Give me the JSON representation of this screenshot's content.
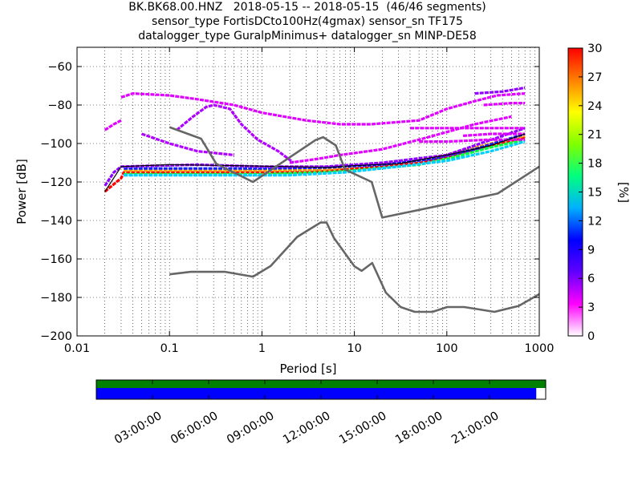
{
  "chart_data": [
    {
      "type": "heatmap",
      "title": [
        "BK.BK68.00.HNZ   2018-05-15 -- 2018-05-15  (46/46 segments)",
        "sensor_type FortisDCto100Hz(4gmax) sensor_sn TF175",
        "datalogger_type GuralpMinimus+ datalogger_sn MINP-DE58"
      ],
      "xlabel": "Period [s]",
      "ylabel": "Power [dB]",
      "xscale": "log",
      "xlim": [
        0.01,
        1000
      ],
      "ylim": [
        -200,
        -50
      ],
      "xtick_values": [
        0.01,
        0.1,
        1,
        10,
        100,
        1000
      ],
      "xtick_labels": [
        "0.01",
        "0.1",
        "1",
        "10",
        "100",
        "1000"
      ],
      "ytick_values": [
        -200,
        -180,
        -160,
        -140,
        -120,
        -100,
        -80,
        -60
      ],
      "ytick_labels": [
        "−200",
        "−180",
        "−160",
        "−140",
        "−120",
        "−100",
        "−80",
        "−60"
      ],
      "grid": "dotted",
      "colorbar": {
        "label": "[%]",
        "min": 0,
        "max": 30,
        "ticks": [
          0,
          3,
          6,
          9,
          12,
          15,
          18,
          21,
          24,
          27,
          30
        ],
        "colormap": [
          "#ffffff",
          "#ff00ff",
          "#6000ff",
          "#0000ff",
          "#00b0ff",
          "#00ff80",
          "#80ff00",
          "#ffff00",
          "#ff8000",
          "#ff0000"
        ]
      },
      "model_curves": [
        {
          "name": "NHNM",
          "color": "#666666",
          "points": [
            [
              0.1,
              -91.5
            ],
            [
              0.22,
              -97.5
            ],
            [
              0.32,
              -110.5
            ],
            [
              0.8,
              -120
            ],
            [
              3.8,
              -98.2
            ],
            [
              4.6,
              -96.7
            ],
            [
              6.3,
              -101
            ],
            [
              7.9,
              -113.5
            ],
            [
              15.4,
              -120
            ],
            [
              20,
              -138.5
            ],
            [
              354.8,
              -126
            ],
            [
              1000,
              -112
            ]
          ]
        },
        {
          "name": "NLNM",
          "color": "#666666",
          "points": [
            [
              0.1,
              -168
            ],
            [
              0.17,
              -166.7
            ],
            [
              0.4,
              -166.7
            ],
            [
              0.8,
              -169.2
            ],
            [
              1.24,
              -163.7
            ],
            [
              2.4,
              -148.6
            ],
            [
              4.3,
              -141.1
            ],
            [
              5,
              -141.1
            ],
            [
              6,
              -149
            ],
            [
              10,
              -163.8
            ],
            [
              12,
              -166.2
            ],
            [
              15.6,
              -162.1
            ],
            [
              21.9,
              -177.5
            ],
            [
              31.6,
              -185
            ],
            [
              45,
              -187.5
            ],
            [
              70,
              -187.5
            ],
            [
              101,
              -185
            ],
            [
              154,
              -185
            ],
            [
              328,
              -187.5
            ],
            [
              600,
              -184.4
            ],
            [
              1000,
              -178.3
            ]
          ]
        }
      ],
      "density_traces": [
        {
          "level": 30,
          "color": "#ff0000",
          "points": [
            [
              0.02,
              -125
            ],
            [
              0.03,
              -118
            ],
            [
              0.032,
              -115
            ],
            [
              1,
              -115
            ],
            [
              3,
              -115
            ],
            [
              6,
              -114
            ],
            [
              10,
              -113
            ],
            [
              20,
              -112
            ],
            [
              50,
              -110
            ],
            [
              100,
              -107
            ],
            [
              300,
              -101
            ],
            [
              700,
              -97
            ]
          ]
        },
        {
          "level": 25,
          "color": "#ffa000",
          "points": [
            [
              0.032,
              -114
            ],
            [
              1,
              -114
            ],
            [
              5,
              -113.5
            ],
            [
              10,
              -112
            ],
            [
              50,
              -109
            ],
            [
              100,
              -106
            ],
            [
              300,
              -100
            ],
            [
              700,
              -96
            ]
          ]
        },
        {
          "level": 18,
          "color": "#00ff40",
          "points": [
            [
              0.032,
              -116
            ],
            [
              1,
              -116
            ],
            [
              5,
              -115
            ],
            [
              10,
              -114
            ],
            [
              50,
              -111
            ],
            [
              100,
              -108
            ],
            [
              300,
              -102
            ],
            [
              700,
              -98
            ]
          ]
        },
        {
          "level": 14,
          "color": "#00d0ff",
          "points": [
            [
              0.032,
              -116.5
            ],
            [
              2,
              -116.5
            ],
            [
              8,
              -115
            ],
            [
              30,
              -112
            ],
            [
              100,
              -109
            ],
            [
              300,
              -104
            ],
            [
              700,
              -99
            ]
          ]
        },
        {
          "level": 8,
          "color": "#1020ff",
          "points": [
            [
              0.032,
              -113
            ],
            [
              1,
              -113
            ],
            [
              5,
              -112.5
            ],
            [
              20,
              -111
            ],
            [
              70,
              -108
            ],
            [
              200,
              -103
            ],
            [
              700,
              -95
            ]
          ]
        },
        {
          "level": 4,
          "color": "#9000ff",
          "points": [
            [
              0.02,
              -122
            ],
            [
              0.025,
              -115
            ],
            [
              0.03,
              -112
            ],
            [
              0.2,
              -111
            ],
            [
              1,
              -112
            ],
            [
              5,
              -112
            ],
            [
              20,
              -110
            ],
            [
              100,
              -106
            ],
            [
              700,
              -92
            ]
          ]
        },
        {
          "level": 2,
          "color": "#e000ff",
          "points": [
            [
              0.03,
              -76
            ],
            [
              0.04,
              -74
            ],
            [
              0.1,
              -75
            ],
            [
              0.2,
              -77
            ],
            [
              0.5,
              -80
            ],
            [
              1,
              -84
            ],
            [
              3,
              -88
            ],
            [
              7,
              -90
            ],
            [
              15,
              -90
            ],
            [
              50,
              -88
            ],
            [
              100,
              -82
            ],
            [
              200,
              -78
            ],
            [
              350,
              -75
            ],
            [
              700,
              -74
            ]
          ]
        },
        {
          "level": 2,
          "color": "#e000ff",
          "points": [
            [
              0.02,
              -93
            ],
            [
              0.025,
              -90
            ],
            [
              0.03,
              -88
            ]
          ]
        },
        {
          "level": 2,
          "color": "#e000ff",
          "points": [
            [
              2,
              -110
            ],
            [
              4,
              -108
            ],
            [
              7,
              -106
            ],
            [
              20,
              -103
            ],
            [
              60,
              -97
            ],
            [
              200,
              -90
            ],
            [
              500,
              -86
            ]
          ]
        },
        {
          "level": 3,
          "color": "#b000ff",
          "points": [
            [
              0.05,
              -95
            ],
            [
              0.1,
              -100
            ],
            [
              0.2,
              -104
            ],
            [
              0.5,
              -106
            ]
          ]
        },
        {
          "level": 3,
          "color": "#b000ff",
          "points": [
            [
              0.12,
              -93
            ],
            [
              0.18,
              -86
            ],
            [
              0.25,
              -81
            ],
            [
              0.3,
              -80
            ],
            [
              0.45,
              -82
            ],
            [
              0.6,
              -90
            ],
            [
              0.9,
              -98
            ],
            [
              1.5,
              -104
            ],
            [
              2.2,
              -110
            ]
          ]
        },
        {
          "level": 2,
          "color": "#e000ff",
          "points": [
            [
              40,
              -92
            ],
            [
              100,
              -92
            ],
            [
              300,
              -92
            ],
            [
              700,
              -92
            ]
          ]
        },
        {
          "level": 2,
          "color": "#e000ff",
          "points": [
            [
              150,
              -96
            ],
            [
              300,
              -95
            ],
            [
              700,
              -95
            ]
          ]
        },
        {
          "level": 4,
          "color": "#9000ff",
          "points": [
            [
              200,
              -74
            ],
            [
              400,
              -73
            ],
            [
              700,
              -71
            ]
          ]
        },
        {
          "level": 2,
          "color": "#e000ff",
          "points": [
            [
              250,
              -80
            ],
            [
              500,
              -79
            ],
            [
              700,
              -79
            ]
          ]
        },
        {
          "level": 2,
          "color": "#e000ff",
          "points": [
            [
              50,
              -99
            ],
            [
              100,
              -99
            ],
            [
              300,
              -98
            ],
            [
              700,
              -98
            ]
          ]
        }
      ],
      "black_lines": [
        {
          "color": "#000000",
          "points": [
            [
              0.02,
              -125
            ],
            [
              0.03,
              -112
            ],
            [
              0.1,
              -111
            ],
            [
              0.5,
              -111.5
            ],
            [
              2,
              -112
            ],
            [
              5,
              -112.5
            ],
            [
              10,
              -111.5
            ],
            [
              30,
              -110.5
            ],
            [
              100,
              -106
            ],
            [
              300,
              -101
            ],
            [
              700,
              -95
            ]
          ]
        }
      ]
    },
    {
      "type": "timeline",
      "xtick_labels": [
        "03:00:00",
        "06:00:00",
        "09:00:00",
        "12:00:00",
        "15:00:00",
        "18:00:00",
        "21:00:00"
      ],
      "tracks": [
        {
          "color": "#008000",
          "fraction": 1.0
        },
        {
          "color": "#0000ff",
          "fraction": 0.979
        }
      ]
    }
  ]
}
